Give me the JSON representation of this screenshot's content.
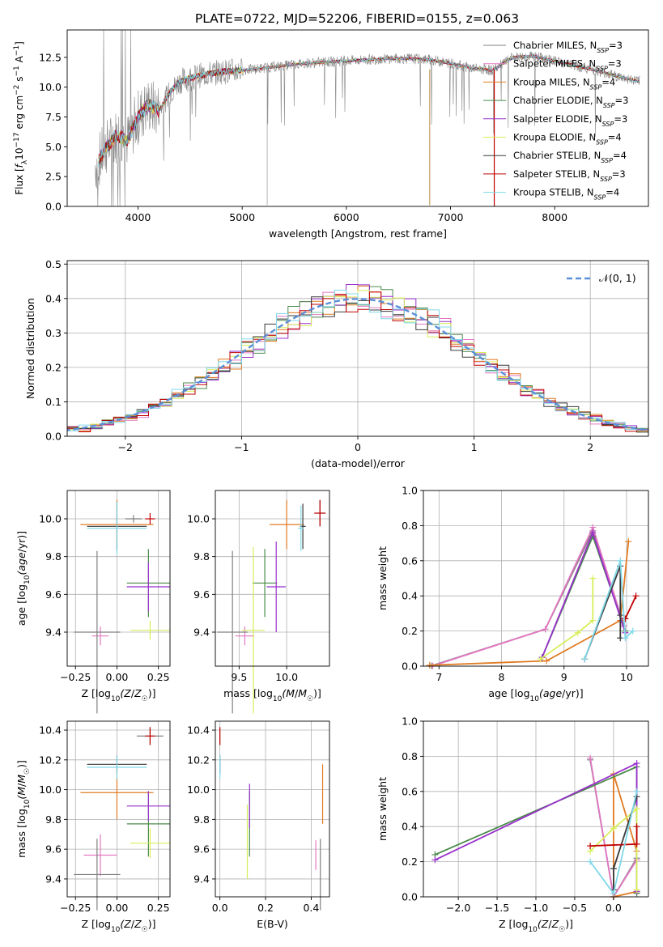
{
  "figure": {
    "title": "PLATE=0722, MJD=52206, FIBERID=0155, z=0.063",
    "model_colors": [
      "#808080",
      "#e377c2",
      "#e07b23",
      "#4a8a4a",
      "#9932cc",
      "#d8ee5a",
      "#3a3a3a",
      "#c00000",
      "#80d8e8"
    ],
    "model_labels": [
      {
        "base": "Chabrier MILES, N",
        "sub": "SSP",
        "val": "=3"
      },
      {
        "base": "Salpeter MILES, N",
        "sub": "SSP",
        "val": "=3"
      },
      {
        "base": "Kroupa MILES, N",
        "sub": "SSP",
        "val": "=4"
      },
      {
        "base": "Chabrier ELODIE, N",
        "sub": "SSP",
        "val": "=3"
      },
      {
        "base": "Salpeter ELODIE, N",
        "sub": "SSP",
        "val": "=3"
      },
      {
        "base": "Kroupa ELODIE, N",
        "sub": "SSP",
        "val": "=4"
      },
      {
        "base": "Chabrier STELIB, N",
        "sub": "SSP",
        "val": "=4"
      },
      {
        "base": "Salpeter STELIB, N",
        "sub": "SSP",
        "val": "=3"
      },
      {
        "base": "Kroupa STELIB, N",
        "sub": "SSP",
        "val": "=4"
      }
    ]
  },
  "chart_data": [
    {
      "id": "spectrum",
      "type": "line",
      "xlabel": "wavelength [Angstrom, rest frame]",
      "ylabel": "Flux [f_λ 10^-17 erg cm^-2 s^-1 A^-1]",
      "xlim": [
        3320,
        8900
      ],
      "ylim": [
        0,
        14.8
      ],
      "xticks": [
        4000,
        5000,
        6000,
        7000,
        8000
      ],
      "yticks": [
        0.0,
        2.5,
        5.0,
        7.5,
        10.0,
        12.5
      ],
      "continuum": {
        "x": [
          3600,
          3700,
          3800,
          3900,
          4000,
          4100,
          4200,
          4300,
          4400,
          4600,
          4800,
          5000,
          5200,
          5400,
          5600,
          5800,
          6000,
          6200,
          6400,
          6600,
          6800,
          7000,
          7200,
          7400,
          7600,
          7800,
          8000,
          8200,
          8400,
          8600,
          8800
        ],
        "y": [
          3.5,
          5.0,
          6.0,
          5.5,
          7.5,
          8.5,
          8.0,
          9.5,
          10.5,
          11.0,
          11.3,
          11.4,
          11.6,
          11.8,
          12.0,
          12.1,
          12.2,
          12.3,
          12.4,
          12.4,
          12.3,
          12.0,
          11.6,
          11.4,
          12.5,
          12.6,
          12.2,
          11.8,
          11.4,
          10.9,
          10.5
        ]
      },
      "drops": [
        {
          "x": 6800,
          "y": 0.1
        },
        {
          "x": 7420,
          "y": 0.0
        }
      ],
      "legend": "upper right",
      "grid": false
    },
    {
      "id": "residuals",
      "type": "histogram",
      "xlabel": "(data-model)/error",
      "ylabel": "Normed distribution",
      "xlim": [
        -2.5,
        2.5
      ],
      "ylim": [
        0,
        0.51
      ],
      "xticks": [
        -2,
        -1,
        0,
        1,
        2
      ],
      "yticks": [
        0.0,
        0.1,
        0.2,
        0.3,
        0.4,
        0.5
      ],
      "bin_width": 0.1,
      "reference": {
        "label": "𝒩(0, 1)",
        "mean": 0,
        "sigma": 1
      },
      "grid": true
    },
    {
      "id": "age_vs_Z",
      "type": "errorbar",
      "xlabel": "Z [log10(Z/Z☉)]",
      "ylabel": "age [log10(age/yr)]",
      "xlim": [
        -0.3,
        0.32
      ],
      "ylim": [
        9.22,
        10.15
      ],
      "xticks": [
        -0.25,
        0.0,
        0.25
      ],
      "xticklabels": [
        "−0.25",
        "0.00",
        "0.25"
      ],
      "yticks": [
        9.4,
        9.6,
        9.8,
        10.0
      ],
      "points": [
        {
          "x": 0.1,
          "y": 10.0,
          "xerr": 0.05,
          "yerr": 0.02
        },
        {
          "x": -0.1,
          "y": 9.38,
          "xerr": 0.05,
          "yerr": 0.05
        },
        {
          "x": 0.0,
          "y": 9.97,
          "xerr": 0.22,
          "yerr": 0.13
        },
        {
          "x": 0.19,
          "y": 9.66,
          "xerr": 0.13,
          "yerr": 0.18
        },
        {
          "x": 0.19,
          "y": 9.64,
          "xerr": 0.13,
          "yerr": 0.13
        },
        {
          "x": 0.2,
          "y": 9.41,
          "xerr": 0.12,
          "yerr": 0.05
        },
        {
          "x": 0.0,
          "y": 9.96,
          "xerr": 0.18,
          "yerr": 0.13
        },
        {
          "x": 0.2,
          "y": 10.0,
          "xerr": 0.03,
          "yerr": 0.03
        },
        {
          "x": 0.0,
          "y": 9.95,
          "xerr": 0.18,
          "yerr": 0.14
        },
        {
          "x": -0.12,
          "y": 9.4,
          "xerr": 0.14,
          "yerr": 0.43
        }
      ],
      "grid": true
    },
    {
      "id": "age_vs_mass",
      "type": "errorbar",
      "xlabel": "mass [log10(M/M☉)]",
      "ylabel": "",
      "xlim": [
        9.25,
        10.45
      ],
      "ylim": [
        9.22,
        10.15
      ],
      "xticks": [
        9.5,
        10.0
      ],
      "xticklabels": [
        "9.5",
        "10.0"
      ],
      "yticks": [
        9.4,
        9.6,
        9.8,
        10.0
      ],
      "points": [
        {
          "x": 10.35,
          "y": 10.03,
          "xerr": 0.05,
          "yerr": 0.07
        },
        {
          "x": 9.56,
          "y": 9.38,
          "xerr": 0.1,
          "yerr": 0.05
        },
        {
          "x": 10.0,
          "y": 9.97,
          "xerr": 0.18,
          "yerr": 0.13
        },
        {
          "x": 9.77,
          "y": 9.66,
          "xerr": 0.13,
          "yerr": 0.18
        },
        {
          "x": 9.89,
          "y": 9.64,
          "xerr": 0.1,
          "yerr": 0.24
        },
        {
          "x": 9.65,
          "y": 9.41,
          "xerr": 0.12,
          "yerr": 0.44
        },
        {
          "x": 10.17,
          "y": 9.96,
          "xerr": 0.03,
          "yerr": 0.12
        },
        {
          "x": 10.35,
          "y": 10.03,
          "xerr": 0.06,
          "yerr": 0.07
        },
        {
          "x": 10.15,
          "y": 9.95,
          "xerr": 0.03,
          "yerr": 0.12
        },
        {
          "x": 9.43,
          "y": 9.4,
          "xerr": 0.16,
          "yerr": 0.43
        }
      ],
      "grid": true
    },
    {
      "id": "weight_vs_age",
      "type": "line",
      "xlabel": "age [log10(age/yr)]",
      "ylabel": "mass weight",
      "xlim": [
        6.75,
        10.35
      ],
      "ylim": [
        0,
        1.0
      ],
      "xticks": [
        7,
        8,
        9,
        10
      ],
      "yticks": [
        0.0,
        0.2,
        0.4,
        0.6,
        0.8,
        1.0
      ],
      "series": [
        {
          "x": [
            6.88,
            8.7,
            9.46,
            9.96
          ],
          "y": [
            0.002,
            0.21,
            0.77,
            0.23
          ]
        },
        {
          "x": [
            6.9,
            8.7,
            9.46,
            9.96
          ],
          "y": [
            0.002,
            0.21,
            0.79,
            0.23
          ]
        },
        {
          "x": [
            6.85,
            8.72,
            9.9,
            10.03
          ],
          "y": [
            0.005,
            0.03,
            0.26,
            0.71
          ]
        },
        {
          "x": [
            8.65,
            9.46,
            9.98
          ],
          "y": [
            0.05,
            0.74,
            0.2
          ]
        },
        {
          "x": [
            8.65,
            9.46,
            9.98
          ],
          "y": [
            0.05,
            0.76,
            0.19
          ]
        },
        {
          "x": [
            8.62,
            9.22,
            9.46,
            9.46
          ],
          "y": [
            0.04,
            0.19,
            0.26,
            0.5
          ]
        },
        {
          "x": [
            9.33,
            9.9,
            9.9,
            9.9
          ],
          "y": [
            0.04,
            0.57,
            0.29,
            0.16
          ]
        },
        {
          "x": [
            9.98,
            10.15
          ],
          "y": [
            0.27,
            0.4
          ]
        },
        {
          "x": [
            9.33,
            9.9,
            9.98,
            10.1
          ],
          "y": [
            0.04,
            0.6,
            0.16,
            0.2
          ]
        }
      ],
      "grid": true
    },
    {
      "id": "mass_vs_Z",
      "type": "errorbar",
      "xlabel": "Z [log10(Z/Z☉)]",
      "ylabel": "mass [log10(M/M☉)]",
      "xlim": [
        -0.3,
        0.32
      ],
      "ylim": [
        9.28,
        10.46
      ],
      "xticks": [
        -0.25,
        0.0,
        0.25
      ],
      "xticklabels": [
        "−0.25",
        "0.00",
        "0.25"
      ],
      "yticks": [
        9.4,
        9.6,
        9.8,
        10.0,
        10.2,
        10.4
      ],
      "points": [
        {
          "x": 0.2,
          "y": 10.36,
          "xerr": 0.08,
          "yerr": 0.06
        },
        {
          "x": -0.1,
          "y": 9.56,
          "xerr": 0.1,
          "yerr": 0.14
        },
        {
          "x": 0.0,
          "y": 9.98,
          "xerr": 0.22,
          "yerr": 0.18
        },
        {
          "x": 0.19,
          "y": 9.77,
          "xerr": 0.13,
          "yerr": 0.22
        },
        {
          "x": 0.19,
          "y": 9.89,
          "xerr": 0.13,
          "yerr": 0.1
        },
        {
          "x": 0.2,
          "y": 9.64,
          "xerr": 0.12,
          "yerr": 0.1
        },
        {
          "x": 0.0,
          "y": 10.17,
          "xerr": 0.18,
          "yerr": 0.06
        },
        {
          "x": 0.2,
          "y": 10.36,
          "xerr": 0.03,
          "yerr": 0.06
        },
        {
          "x": 0.0,
          "y": 10.15,
          "xerr": 0.18,
          "yerr": 0.08
        },
        {
          "x": -0.12,
          "y": 9.43,
          "xerr": 0.14,
          "yerr": 0.24
        }
      ],
      "grid": true
    },
    {
      "id": "mass_vs_ebv",
      "type": "errorbar",
      "xlabel": "E(B-V)",
      "ylabel": "",
      "xlim": [
        -0.02,
        0.48
      ],
      "ylim": [
        9.28,
        10.46
      ],
      "xticks": [
        0.0,
        0.2,
        0.4
      ],
      "xticklabels": [
        "0.0",
        "0.2",
        "0.4"
      ],
      "yticks": [
        9.4,
        9.6,
        9.8,
        10.0,
        10.2,
        10.4
      ],
      "points": [
        {
          "x": 0.0,
          "y": 10.36,
          "xerr": 0,
          "yerr": 0.06
        },
        {
          "x": 0.42,
          "y": 9.56,
          "xerr": 0,
          "yerr": 0.1
        },
        {
          "x": 0.45,
          "y": 9.97,
          "xerr": 0,
          "yerr": 0.2
        },
        {
          "x": 0.13,
          "y": 9.77,
          "xerr": 0,
          "yerr": 0.22
        },
        {
          "x": 0.13,
          "y": 9.89,
          "xerr": 0,
          "yerr": 0.15
        },
        {
          "x": 0.12,
          "y": 9.65,
          "xerr": 0,
          "yerr": 0.25
        },
        {
          "x": 0.0,
          "y": 10.17,
          "xerr": 0,
          "yerr": 0.06
        },
        {
          "x": 0.0,
          "y": 10.36,
          "xerr": 0,
          "yerr": 0.06
        },
        {
          "x": 0.0,
          "y": 10.15,
          "xerr": 0,
          "yerr": 0.08
        },
        {
          "x": 0.44,
          "y": 9.43,
          "xerr": 0,
          "yerr": 0.24
        }
      ],
      "grid": true
    },
    {
      "id": "weight_vs_Z",
      "type": "line",
      "xlabel": "Z [log10(Z/Z☉)]",
      "ylabel": "mass weight",
      "xlim": [
        -2.45,
        0.45
      ],
      "ylim": [
        0,
        1.0
      ],
      "xticks": [
        -2.0,
        -1.5,
        -1.0,
        -0.5,
        0.0
      ],
      "xticklabels": [
        "−2.0",
        "−1.5",
        "−1.0",
        "−0.5",
        "0.0"
      ],
      "yticks": [
        0.0,
        0.2,
        0.4,
        0.6,
        0.8,
        1.0
      ],
      "series": [
        {
          "x": [
            -0.3,
            0.0,
            0.3
          ],
          "y": [
            0.78,
            0.0,
            0.22
          ]
        },
        {
          "x": [
            -0.3,
            0.0,
            0.3
          ],
          "y": [
            0.79,
            0.0,
            0.21
          ]
        },
        {
          "x": [
            0.3,
            0.0,
            0.0,
            0.3
          ],
          "y": [
            0.03,
            0.0,
            0.7,
            0.26
          ]
        },
        {
          "x": [
            -2.3,
            0.3,
            0.3
          ],
          "y": [
            0.24,
            0.74,
            0.02
          ]
        },
        {
          "x": [
            -2.3,
            0.3,
            0.3
          ],
          "y": [
            0.21,
            0.76,
            0.03
          ]
        },
        {
          "x": [
            -0.3,
            0.0,
            0.3,
            0.3
          ],
          "y": [
            0.26,
            0.39,
            0.5,
            0.04
          ]
        },
        {
          "x": [
            0.3,
            0.0,
            0.0
          ],
          "y": [
            0.57,
            0.16,
            0.04
          ]
        },
        {
          "x": [
            -0.3,
            0.3,
            0.3
          ],
          "y": [
            0.29,
            0.3,
            0.4
          ]
        },
        {
          "x": [
            -0.3,
            0.0,
            0.3
          ],
          "y": [
            0.2,
            0.02,
            0.6
          ]
        }
      ],
      "grid": true
    }
  ]
}
